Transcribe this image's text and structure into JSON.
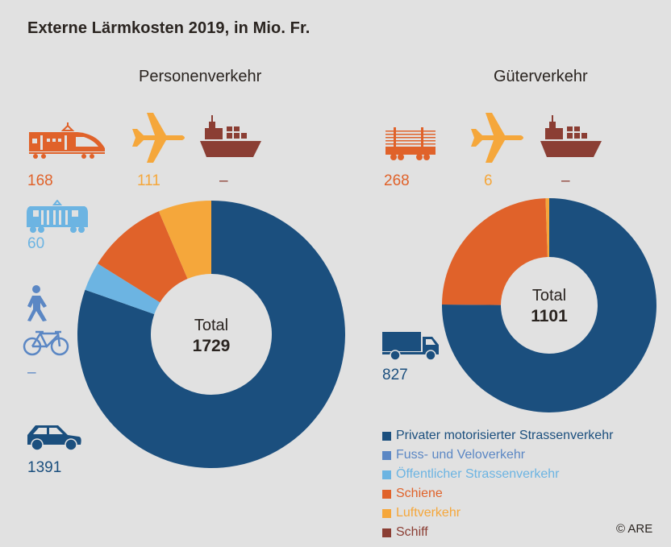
{
  "title": "Externe Lärmkosten 2019, in Mio. Fr.",
  "copyright": "© ARE",
  "colors": {
    "private_road": "#1b4f7e",
    "walk_bike": "#5b87c4",
    "public_road": "#6cb4e2",
    "rail": "#e0622a",
    "air": "#f5a73b",
    "ship": "#8b3e34"
  },
  "icon_values": {
    "passenger": {
      "rail": {
        "icon": "train-icon",
        "value": "168"
      },
      "air": {
        "icon": "airplane-icon",
        "value": "111"
      },
      "ship": {
        "icon": "ship-icon",
        "value": "–"
      },
      "public_road": {
        "icon": "tram-icon",
        "value": "60"
      },
      "walk_bike": {
        "icon": "pedestrian-bicycle-icon",
        "value": "–"
      },
      "private_road": {
        "icon": "car-icon",
        "value": "1391"
      }
    },
    "freight": {
      "rail": {
        "icon": "freight-wagon-icon",
        "value": "268"
      },
      "air": {
        "icon": "airplane-icon",
        "value": "6"
      },
      "ship": {
        "icon": "ship-icon",
        "value": "–"
      },
      "private_road": {
        "icon": "truck-icon",
        "value": "827"
      }
    }
  },
  "chart_data": [
    {
      "type": "pie",
      "variant": "donut",
      "title": "Personenverkehr",
      "center_label": "Total",
      "total": "1729",
      "start": "top",
      "direction": "clockwise",
      "slices": [
        {
          "name": "Privater motorisierter Strassenverkehr",
          "value": 1391,
          "color_key": "private_road"
        },
        {
          "name": "Fuss- und Veloverkehr",
          "value": 0,
          "color_key": "walk_bike"
        },
        {
          "name": "Öffentlicher Strassenverkehr",
          "value": 60,
          "color_key": "public_road"
        },
        {
          "name": "Schiene",
          "value": 168,
          "color_key": "rail"
        },
        {
          "name": "Luftverkehr",
          "value": 111,
          "color_key": "air"
        },
        {
          "name": "Schiff",
          "value": 0,
          "color_key": "ship"
        }
      ]
    },
    {
      "type": "pie",
      "variant": "donut",
      "title": "Güterverkehr",
      "center_label": "Total",
      "total": "1101",
      "start": "top",
      "direction": "clockwise",
      "slices": [
        {
          "name": "Privater motorisierter Strassenverkehr",
          "value": 827,
          "color_key": "private_road"
        },
        {
          "name": "Schiene",
          "value": 268,
          "color_key": "rail"
        },
        {
          "name": "Luftverkehr",
          "value": 6,
          "color_key": "air"
        },
        {
          "name": "Schiff",
          "value": 0,
          "color_key": "ship"
        }
      ]
    }
  ],
  "legend": [
    {
      "label": "Privater motorisierter Strassenverkehr",
      "color_key": "private_road"
    },
    {
      "label": "Fuss- und Veloverkehr",
      "color_key": "walk_bike"
    },
    {
      "label": "Öffentlicher Strassenverkehr",
      "color_key": "public_road"
    },
    {
      "label": "Schiene",
      "color_key": "rail"
    },
    {
      "label": "Luftverkehr",
      "color_key": "air"
    },
    {
      "label": "Schiff",
      "color_key": "ship"
    }
  ]
}
